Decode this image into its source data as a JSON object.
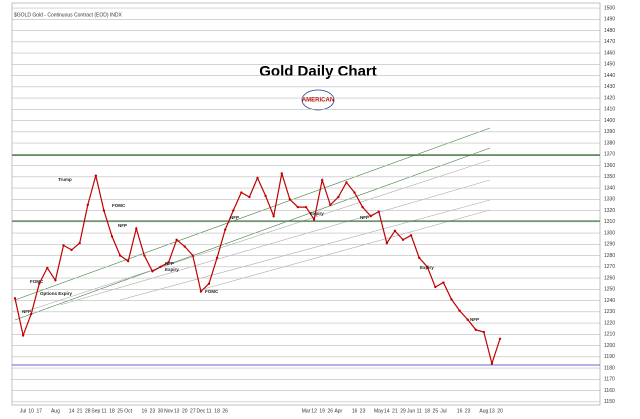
{
  "chart_data": {
    "type": "line",
    "title": "Gold Daily Chart",
    "subtitle": "$GOLD Gold - Continuous Contract (EOD) INDX",
    "logo_text": "AMERICAN",
    "color": "#c00000",
    "ylim": [
      1145,
      1505
    ],
    "yticks": [
      1150,
      1160,
      1170,
      1180,
      1190,
      1200,
      1210,
      1220,
      1230,
      1240,
      1250,
      1260,
      1270,
      1280,
      1290,
      1300,
      1310,
      1320,
      1330,
      1340,
      1350,
      1360,
      1370,
      1380,
      1390,
      1400,
      1410,
      1420,
      1430,
      1440,
      1450,
      1460,
      1470,
      1480,
      1490,
      1500
    ],
    "categories": [
      null,
      "Jul",
      "10",
      "17",
      null,
      "Aug",
      null,
      "14",
      "21",
      "28",
      "Sep",
      "11",
      "18",
      "25",
      "Oct",
      null,
      "16",
      "23",
      "30",
      "Nov",
      "13",
      "20",
      "27",
      "Dec",
      "11",
      "18",
      "26",
      null,
      null,
      null,
      null,
      null,
      null,
      null,
      null,
      null,
      "Mar",
      "12",
      "19",
      "26",
      "Apr",
      null,
      "16",
      "23",
      null,
      "May",
      "14",
      "21",
      "29",
      "Jun",
      "11",
      "18",
      "25",
      "Jul",
      null,
      "16",
      "23",
      null,
      "Aug",
      "13",
      "20"
    ],
    "values": [
      1242,
      1209,
      1228,
      1255,
      1269,
      1258,
      1289,
      1285,
      1291,
      1325,
      1351,
      1320,
      1297,
      1280,
      1275,
      1304,
      1280,
      1266,
      1270,
      1274,
      1294,
      1288,
      1280,
      1248,
      1255,
      1278,
      1303,
      1320,
      1336,
      1332,
      1349,
      1333,
      1315,
      1353,
      1330,
      1323,
      1323,
      1312,
      1347,
      1325,
      1332,
      1345,
      1336,
      1323,
      1315,
      1319,
      1291,
      1302,
      1294,
      1298,
      1278,
      1270,
      1252,
      1256,
      1241,
      1231,
      1223,
      1214,
      1212,
      1184,
      1206
    ],
    "annotations": [
      "Trump",
      "FOMC",
      "Options Expiry",
      "NFP",
      "NFP",
      "FOMC",
      "NFP",
      "Expiry",
      "NFP",
      "FOMC",
      "Expiry",
      "NFP",
      "Expiry",
      "NFP"
    ]
  }
}
